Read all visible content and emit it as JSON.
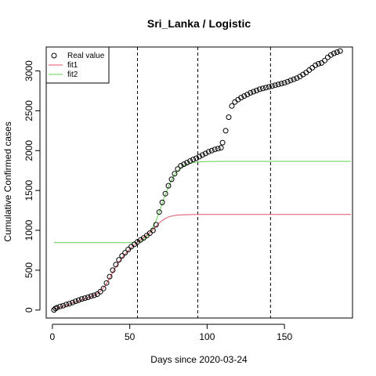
{
  "chart_data": {
    "type": "scatter",
    "title": "Sri_Lanka / Logistic",
    "xlabel": "Days since 2020-03-24",
    "ylabel": "Cumulative Confirmed cases",
    "xlim": [
      -4,
      194
    ],
    "ylim": [
      -100,
      3300
    ],
    "xticks": [
      0,
      50,
      100,
      150
    ],
    "yticks": [
      0,
      500,
      1000,
      1500,
      2000,
      2500,
      3000
    ],
    "vlines": [
      55,
      94,
      141
    ],
    "legend": {
      "position": "top-left",
      "entries": [
        {
          "label": "Real value",
          "marker": "circle",
          "color": "#000000"
        },
        {
          "label": "fit1",
          "marker": "line",
          "color": "#df536b"
        },
        {
          "label": "fit2",
          "marker": "line",
          "color": "#61d04f"
        }
      ]
    },
    "series": [
      {
        "name": "Real value",
        "style": "points",
        "color": "#000000",
        "points": [
          [
            1,
            2
          ],
          [
            2,
            20
          ],
          [
            3,
            30
          ],
          [
            5,
            45
          ],
          [
            7,
            55
          ],
          [
            9,
            70
          ],
          [
            11,
            80
          ],
          [
            13,
            95
          ],
          [
            15,
            110
          ],
          [
            17,
            125
          ],
          [
            19,
            140
          ],
          [
            21,
            150
          ],
          [
            23,
            160
          ],
          [
            25,
            175
          ],
          [
            27,
            185
          ],
          [
            29,
            200
          ],
          [
            31,
            230
          ],
          [
            33,
            270
          ],
          [
            35,
            340
          ],
          [
            37,
            420
          ],
          [
            39,
            500
          ],
          [
            41,
            570
          ],
          [
            43,
            630
          ],
          [
            45,
            680
          ],
          [
            47,
            720
          ],
          [
            49,
            760
          ],
          [
            51,
            795
          ],
          [
            53,
            825
          ],
          [
            55,
            855
          ],
          [
            57,
            880
          ],
          [
            59,
            905
          ],
          [
            61,
            935
          ],
          [
            63,
            965
          ],
          [
            65,
            1000
          ],
          [
            67,
            1070
          ],
          [
            69,
            1230
          ],
          [
            71,
            1350
          ],
          [
            73,
            1460
          ],
          [
            75,
            1560
          ],
          [
            77,
            1640
          ],
          [
            79,
            1710
          ],
          [
            81,
            1770
          ],
          [
            83,
            1810
          ],
          [
            85,
            1830
          ],
          [
            87,
            1850
          ],
          [
            89,
            1870
          ],
          [
            91,
            1890
          ],
          [
            93,
            1905
          ],
          [
            95,
            1925
          ],
          [
            97,
            1945
          ],
          [
            99,
            1965
          ],
          [
            101,
            1985
          ],
          [
            103,
            2000
          ],
          [
            105,
            2015
          ],
          [
            107,
            2025
          ],
          [
            109,
            2035
          ],
          [
            110,
            2100
          ],
          [
            112,
            2250
          ],
          [
            114,
            2420
          ],
          [
            116,
            2560
          ],
          [
            118,
            2610
          ],
          [
            120,
            2640
          ],
          [
            122,
            2665
          ],
          [
            124,
            2685
          ],
          [
            126,
            2705
          ],
          [
            128,
            2725
          ],
          [
            130,
            2740
          ],
          [
            132,
            2755
          ],
          [
            134,
            2770
          ],
          [
            136,
            2780
          ],
          [
            138,
            2790
          ],
          [
            140,
            2800
          ],
          [
            142,
            2810
          ],
          [
            144,
            2820
          ],
          [
            146,
            2830
          ],
          [
            148,
            2840
          ],
          [
            150,
            2850
          ],
          [
            152,
            2865
          ],
          [
            154,
            2880
          ],
          [
            156,
            2895
          ],
          [
            158,
            2910
          ],
          [
            160,
            2930
          ],
          [
            162,
            2955
          ],
          [
            164,
            2980
          ],
          [
            166,
            3010
          ],
          [
            168,
            3040
          ],
          [
            170,
            3070
          ],
          [
            172,
            3090
          ],
          [
            174,
            3100
          ],
          [
            176,
            3130
          ],
          [
            178,
            3170
          ],
          [
            180,
            3200
          ],
          [
            182,
            3220
          ],
          [
            184,
            3235
          ],
          [
            186,
            3250
          ]
        ]
      },
      {
        "name": "fit1",
        "style": "line",
        "color": "#df536b",
        "points": [
          [
            1,
            10
          ],
          [
            5,
            35
          ],
          [
            10,
            65
          ],
          [
            15,
            100
          ],
          [
            20,
            135
          ],
          [
            25,
            170
          ],
          [
            28,
            195
          ],
          [
            31,
            235
          ],
          [
            34,
            300
          ],
          [
            37,
            400
          ],
          [
            40,
            510
          ],
          [
            43,
            600
          ],
          [
            46,
            680
          ],
          [
            49,
            745
          ],
          [
            52,
            800
          ],
          [
            55,
            850
          ],
          [
            58,
            895
          ],
          [
            61,
            940
          ],
          [
            64,
            990
          ],
          [
            67,
            1050
          ],
          [
            70,
            1110
          ],
          [
            73,
            1150
          ],
          [
            76,
            1175
          ],
          [
            80,
            1190
          ],
          [
            85,
            1196
          ],
          [
            95,
            1199
          ],
          [
            110,
            1200
          ],
          [
            150,
            1200
          ],
          [
            193,
            1200
          ]
        ]
      },
      {
        "name": "fit2",
        "style": "line",
        "color": "#61d04f",
        "points": [
          [
            1,
            845
          ],
          [
            52,
            845
          ],
          [
            55,
            848
          ],
          [
            58,
            870
          ],
          [
            61,
            920
          ],
          [
            64,
            1000
          ],
          [
            67,
            1120
          ],
          [
            70,
            1280
          ],
          [
            73,
            1450
          ],
          [
            76,
            1590
          ],
          [
            79,
            1700
          ],
          [
            82,
            1770
          ],
          [
            85,
            1810
          ],
          [
            88,
            1835
          ],
          [
            91,
            1850
          ],
          [
            94,
            1858
          ],
          [
            100,
            1863
          ],
          [
            110,
            1865
          ],
          [
            150,
            1865
          ],
          [
            193,
            1865
          ]
        ]
      }
    ]
  }
}
